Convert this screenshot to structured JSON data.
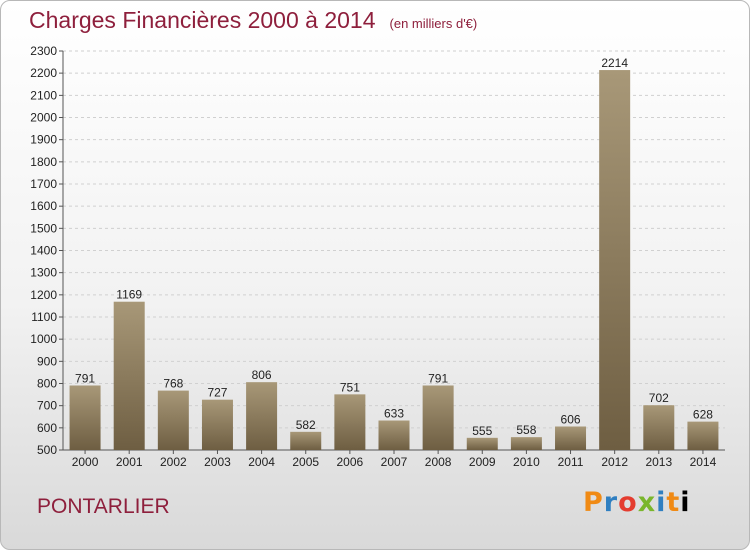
{
  "header": {
    "title": "Charges Financières 2000 à 2014",
    "unit": "(en milliers d'€)"
  },
  "footer": {
    "city": "PONTARLIER",
    "logo": [
      "P",
      "r",
      "o",
      "x",
      "i",
      "t",
      "i"
    ]
  },
  "colors": {
    "title": "#8e1f3c",
    "bar_light": "#a89878",
    "bar_dark": "#6e5e42"
  },
  "chart_data": {
    "type": "bar",
    "title": "Charges Financières 2000 à 2014",
    "xlabel": "",
    "ylabel": "",
    "categories": [
      "2000",
      "2001",
      "2002",
      "2003",
      "2004",
      "2005",
      "2006",
      "2007",
      "2008",
      "2009",
      "2010",
      "2011",
      "2012",
      "2013",
      "2014"
    ],
    "values": [
      791,
      1169,
      768,
      727,
      806,
      582,
      751,
      633,
      791,
      555,
      558,
      606,
      2214,
      702,
      628
    ],
    "ylim": [
      500,
      2300
    ],
    "yticks": [
      500,
      600,
      700,
      800,
      900,
      1000,
      1100,
      1200,
      1300,
      1400,
      1500,
      1600,
      1700,
      1800,
      1900,
      2000,
      2100,
      2200,
      2300
    ],
    "grid": true,
    "legend": "none"
  }
}
